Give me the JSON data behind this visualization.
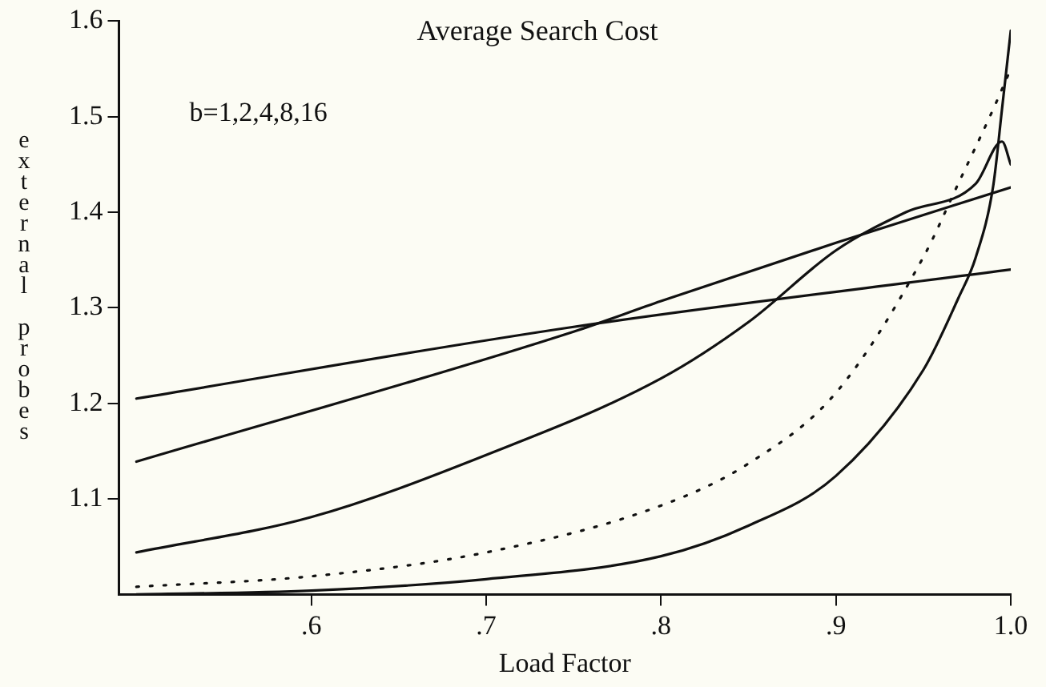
{
  "chart_data": {
    "type": "line",
    "title": "Average Search Cost",
    "xlabel": "Load Factor",
    "ylabel": "external probes",
    "annotations": [
      "b=1,2,4,8,16"
    ],
    "xlim": [
      0.49,
      1.0
    ],
    "ylim": [
      1.0,
      1.6
    ],
    "xticks": [
      {
        "value": 0.6,
        "label": ".6"
      },
      {
        "value": 0.7,
        "label": ".7"
      },
      {
        "value": 0.8,
        "label": ".8"
      },
      {
        "value": 0.9,
        "label": ".9"
      },
      {
        "value": 1.0,
        "label": "1.0"
      }
    ],
    "yticks": [
      1.1,
      1.2,
      1.3,
      1.4,
      1.5,
      1.6
    ],
    "grid": false,
    "legend": false,
    "marker": "none",
    "series": [
      {
        "color": "#111111",
        "line_style": "solid",
        "x": [
          0.5,
          0.75,
          1.0
        ],
        "values": [
          1.205,
          1.28,
          1.34
        ]
      },
      {
        "color": "#111111",
        "line_style": "solid",
        "x": [
          0.5,
          0.75,
          0.8,
          0.9,
          1.0
        ],
        "values": [
          1.139,
          1.275,
          1.307,
          1.368,
          1.426
        ]
      },
      {
        "color": "#111111",
        "line_style": "solid",
        "x": [
          0.5,
          0.6,
          0.7,
          0.8,
          0.85,
          0.9,
          0.94,
          0.98,
          0.995,
          1.0
        ],
        "values": [
          1.044,
          1.081,
          1.146,
          1.226,
          1.285,
          1.36,
          1.4,
          1.43,
          1.474,
          1.45
        ]
      },
      {
        "color": "#111111",
        "line_style": "dotted",
        "x": [
          0.5,
          0.6,
          0.7,
          0.8,
          0.85,
          0.9,
          0.95,
          0.97,
          0.99,
          1.0
        ],
        "values": [
          1.008,
          1.019,
          1.044,
          1.093,
          1.137,
          1.211,
          1.353,
          1.43,
          1.508,
          1.55
        ]
      },
      {
        "color": "#111111",
        "line_style": "solid",
        "x": [
          0.5,
          0.6,
          0.7,
          0.8,
          0.85,
          0.9,
          0.95,
          0.97,
          0.98,
          0.99,
          0.995,
          1.0
        ],
        "values": [
          1.0,
          1.004,
          1.016,
          1.04,
          1.072,
          1.124,
          1.235,
          1.31,
          1.353,
          1.428,
          1.508,
          1.59
        ]
      }
    ]
  }
}
